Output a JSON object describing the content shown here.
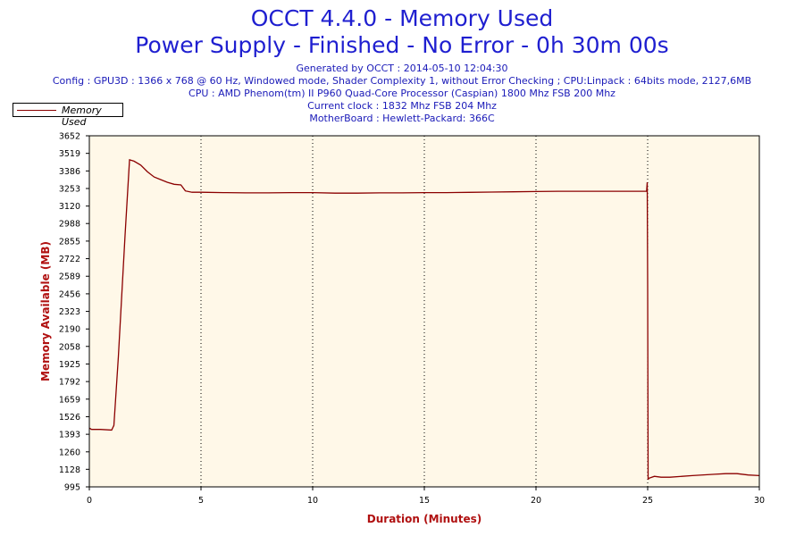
{
  "header": {
    "title_line1": "OCCT 4.4.0 - Memory Used",
    "title_line2": "Power Supply - Finished - No Error - 0h 30m 00s",
    "info_lines": [
      "Generated by OCCT : 2014-05-10 12:04:30",
      "Config : GPU3D : 1366 x 768 @ 60 Hz, Windowed mode, Shader Complexity 1, without Error Checking ; CPU:Linpack : 64bits mode, 2127,6MB",
      "CPU : AMD Phenom(tm) II P960 Quad-Core Processor (Caspian) 1800 Mhz FSB 200 Mhz",
      "Current clock : 1832 Mhz FSB 204 Mhz",
      "MotherBoard : Hewlett-Packard: 366C"
    ]
  },
  "legend": {
    "label": "Memory Used",
    "placement": "top-left"
  },
  "colors": {
    "title": "#1f1fd0",
    "info": "#1a1ab8",
    "plot_background": "#fff8e8",
    "series_line": "#8b0000",
    "axis_title": "#b01010"
  },
  "chart_data": {
    "type": "line",
    "xlabel": "Duration (Minutes)",
    "ylabel": "Memory Available (MB)",
    "xlim": [
      0,
      30
    ],
    "ylim": [
      995,
      3652
    ],
    "x_ticks": [
      0,
      5,
      10,
      15,
      20,
      25,
      30
    ],
    "y_ticks": [
      995,
      1128,
      1260,
      1393,
      1526,
      1659,
      1792,
      1925,
      2058,
      2190,
      2323,
      2456,
      2589,
      2722,
      2855,
      2988,
      3120,
      3253,
      3386,
      3519,
      3652
    ],
    "vertical_gridlines": [
      5,
      10,
      15,
      20,
      25
    ],
    "series": [
      {
        "name": "Memory Used",
        "x": [
          0,
          0.1,
          0.5,
          1.0,
          1.1,
          1.3,
          1.6,
          1.8,
          2.0,
          2.3,
          2.6,
          2.9,
          3.2,
          3.5,
          3.8,
          4.1,
          4.3,
          4.6,
          5.0,
          6.0,
          7.0,
          8.0,
          9.0,
          10.0,
          11.0,
          12.0,
          13.0,
          14.0,
          15.0,
          16.0,
          17.0,
          18.0,
          19.0,
          20.0,
          21.0,
          22.0,
          23.0,
          24.0,
          24.95,
          24.98,
          25.0,
          25.02,
          25.05,
          25.3,
          25.6,
          26.0,
          27.0,
          28.0,
          28.5,
          29.0,
          29.5,
          30.0
        ],
        "y": [
          1440,
          1430,
          1430,
          1425,
          1460,
          1980,
          2900,
          3470,
          3460,
          3430,
          3380,
          3340,
          3320,
          3300,
          3285,
          3280,
          3235,
          3225,
          3225,
          3222,
          3220,
          3220,
          3222,
          3222,
          3218,
          3218,
          3220,
          3220,
          3222,
          3222,
          3224,
          3226,
          3228,
          3230,
          3232,
          3232,
          3232,
          3232,
          3232,
          3300,
          2500,
          1050,
          1060,
          1075,
          1068,
          1068,
          1080,
          1090,
          1095,
          1095,
          1085,
          1080
        ]
      }
    ]
  }
}
